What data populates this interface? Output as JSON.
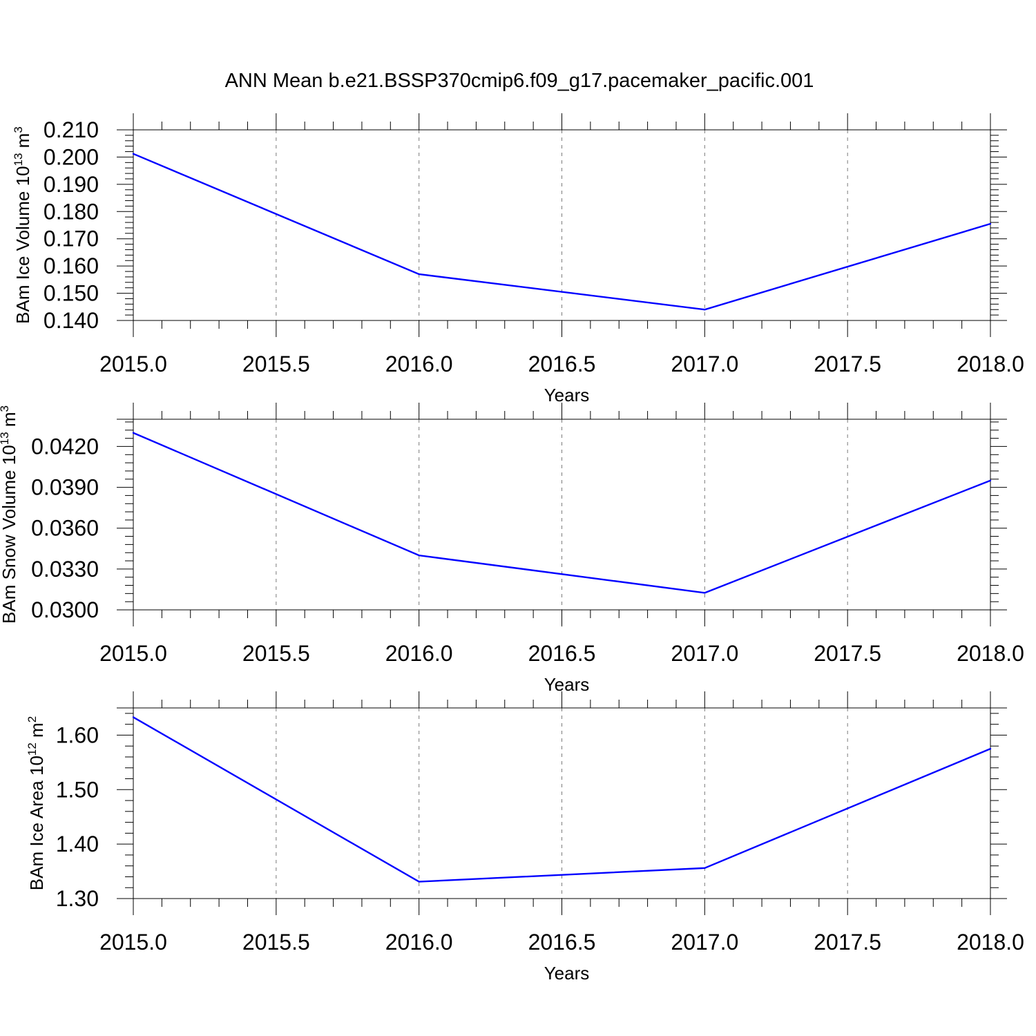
{
  "title": "ANN Mean b.e21.BSSP370cmip6.f09_g17.pacemaker_pacific.001",
  "colors": {
    "line": "#0000ff",
    "frame": "#000000",
    "grid": "#7a7a7a"
  },
  "chart_data": [
    {
      "type": "line",
      "ylabel": {
        "main": "BAm Ice Volume 10",
        "exp": "13",
        "unit": " m",
        "unit_exp": "3"
      },
      "xlabel": "Years",
      "xlim": [
        2015.0,
        2018.0
      ],
      "ylim": [
        0.14,
        0.21
      ],
      "xticks": [
        "2015.0",
        "2015.5",
        "2016.0",
        "2016.5",
        "2017.0",
        "2017.5",
        "2018.0"
      ],
      "yticks": [
        "0.140",
        "0.150",
        "0.160",
        "0.170",
        "0.180",
        "0.190",
        "0.200",
        "0.210"
      ],
      "grid": "vertical dashed at x ticks",
      "x": [
        2015,
        2016,
        2017,
        2018
      ],
      "values": [
        0.2012,
        0.157,
        0.144,
        0.1755
      ]
    },
    {
      "type": "line",
      "ylabel": {
        "main": "BAm Snow Volume 10",
        "exp": "13",
        "unit": " m",
        "unit_exp": "3"
      },
      "xlabel": "Years",
      "xlim": [
        2015.0,
        2018.0
      ],
      "ylim": [
        0.03,
        0.044
      ],
      "xticks": [
        "2015.0",
        "2015.5",
        "2016.0",
        "2016.5",
        "2017.0",
        "2017.5",
        "2018.0"
      ],
      "yticks": [
        "0.0300",
        "0.0330",
        "0.0360",
        "0.0390",
        "0.0420"
      ],
      "grid": "vertical dashed at x ticks",
      "x": [
        2015,
        2016,
        2017,
        2018
      ],
      "values": [
        0.043,
        0.034,
        0.03125,
        0.0395
      ]
    },
    {
      "type": "line",
      "ylabel": {
        "main": "BAm Ice Area 10",
        "exp": "12",
        "unit": " m",
        "unit_exp": "2"
      },
      "xlabel": "Years",
      "xlim": [
        2015.0,
        2018.0
      ],
      "ylim": [
        1.3,
        1.65
      ],
      "xticks": [
        "2015.0",
        "2015.5",
        "2016.0",
        "2016.5",
        "2017.0",
        "2017.5",
        "2018.0"
      ],
      "yticks": [
        "1.30",
        "1.40",
        "1.50",
        "1.60"
      ],
      "grid": "vertical dashed at x ticks",
      "x": [
        2015,
        2016,
        2017,
        2018
      ],
      "values": [
        1.633,
        1.331,
        1.356,
        1.575
      ]
    }
  ]
}
